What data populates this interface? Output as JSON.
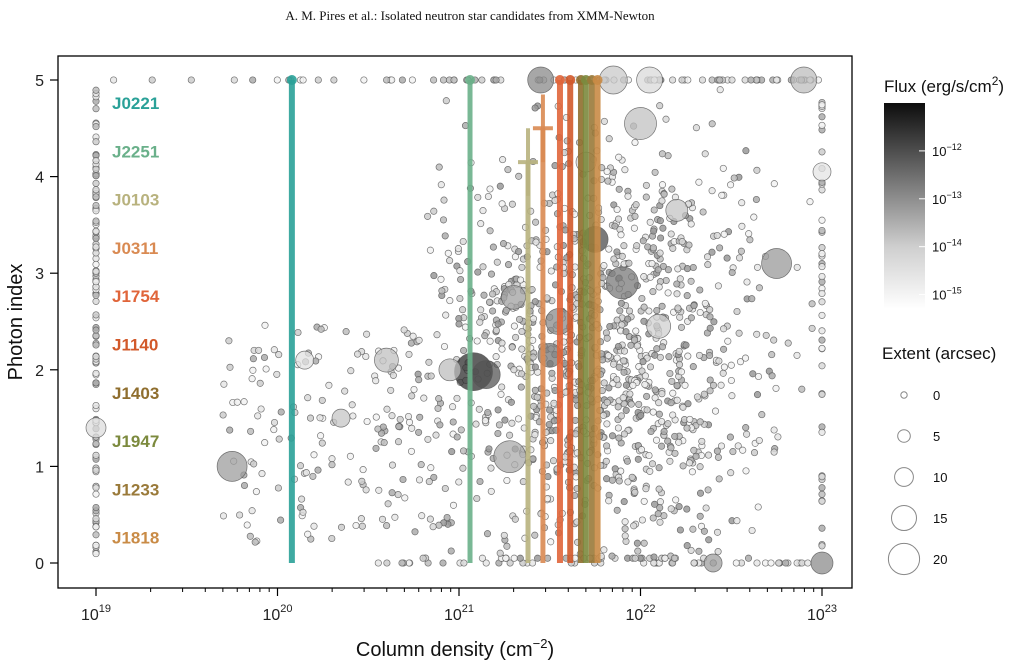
{
  "header": "A. M. Pires et al.: Isolated neutron star candidates from XMM-Newton",
  "chart_data": {
    "type": "scatter",
    "xlabel": "Column density (cm",
    "xlabel_sup": "−2",
    "xlabel_suffix": ")",
    "ylabel": "Photon index",
    "x_scale": "log",
    "xlim": [
      1e+19,
      1e+23
    ],
    "ylim": [
      -0.2,
      5.2
    ],
    "x_ticks": [
      {
        "base": "10",
        "exp": "19",
        "value": 1e+19
      },
      {
        "base": "10",
        "exp": "20",
        "value": 1e+20
      },
      {
        "base": "10",
        "exp": "21",
        "value": 1e+21
      },
      {
        "base": "10",
        "exp": "22",
        "value": 1e+22
      },
      {
        "base": "10",
        "exp": "23",
        "value": 1e+23
      }
    ],
    "y_ticks": [
      "0",
      "1",
      "2",
      "3",
      "4",
      "5"
    ],
    "grid": false,
    "candidates": [
      {
        "name": "J0221",
        "color": "#2aa198",
        "nh": 1.2e+20,
        "gamma_top": 5.0,
        "line_width": 6
      },
      {
        "name": "J2251",
        "color": "#6ab08a",
        "nh": 1.15e+21,
        "gamma_top": 5.0,
        "line_width": 5
      },
      {
        "name": "J0103",
        "color": "#b8b27e",
        "nh": 2.4e+21,
        "gamma_top": 4.15,
        "line_width": 5
      },
      {
        "name": "J0311",
        "color": "#d98a52",
        "nh": 2.9e+21,
        "gamma_top": 4.5,
        "line_width": 5
      },
      {
        "name": "J1754",
        "color": "#e0653a",
        "nh": 3.6e+21,
        "gamma_top": 5.0,
        "line_width": 6
      },
      {
        "name": "J1140",
        "color": "#d2592a",
        "nh": 4.1e+21,
        "gamma_top": 5.0,
        "line_width": 6
      },
      {
        "name": "J1403",
        "color": "#8f6e2e",
        "nh": 4.7e+21,
        "gamma_top": 5.0,
        "line_width": 6
      },
      {
        "name": "J1947",
        "color": "#7c8a3e",
        "nh": 5e+21,
        "gamma_top": 5.0,
        "line_width": 6
      },
      {
        "name": "J1233",
        "color": "#9a7a3a",
        "nh": 5.4e+21,
        "gamma_top": 5.0,
        "line_width": 6
      },
      {
        "name": "J1818",
        "color": "#c98b46",
        "nh": 5.8e+21,
        "gamma_top": 5.0,
        "line_width": 6
      }
    ],
    "background_sources_note": "",
    "flux_legend": {
      "title": "Flux (erg/s/cm",
      "title_sup": "2",
      "title_suffix": ")",
      "ticks": [
        {
          "base": "10",
          "exp": "−12",
          "value": 1e-12
        },
        {
          "base": "10",
          "exp": "−13",
          "value": 1e-13
        },
        {
          "base": "10",
          "exp": "−14",
          "value": 1e-14
        },
        {
          "base": "10",
          "exp": "−15",
          "value": 1e-15
        }
      ],
      "range": [
        5e-16,
        1e-11
      ]
    },
    "extent_legend": {
      "title": "Extent (arcsec)",
      "values": [
        0,
        5,
        10,
        15,
        20
      ],
      "labels": [
        "0",
        "5",
        "10",
        "15",
        "20"
      ]
    }
  }
}
